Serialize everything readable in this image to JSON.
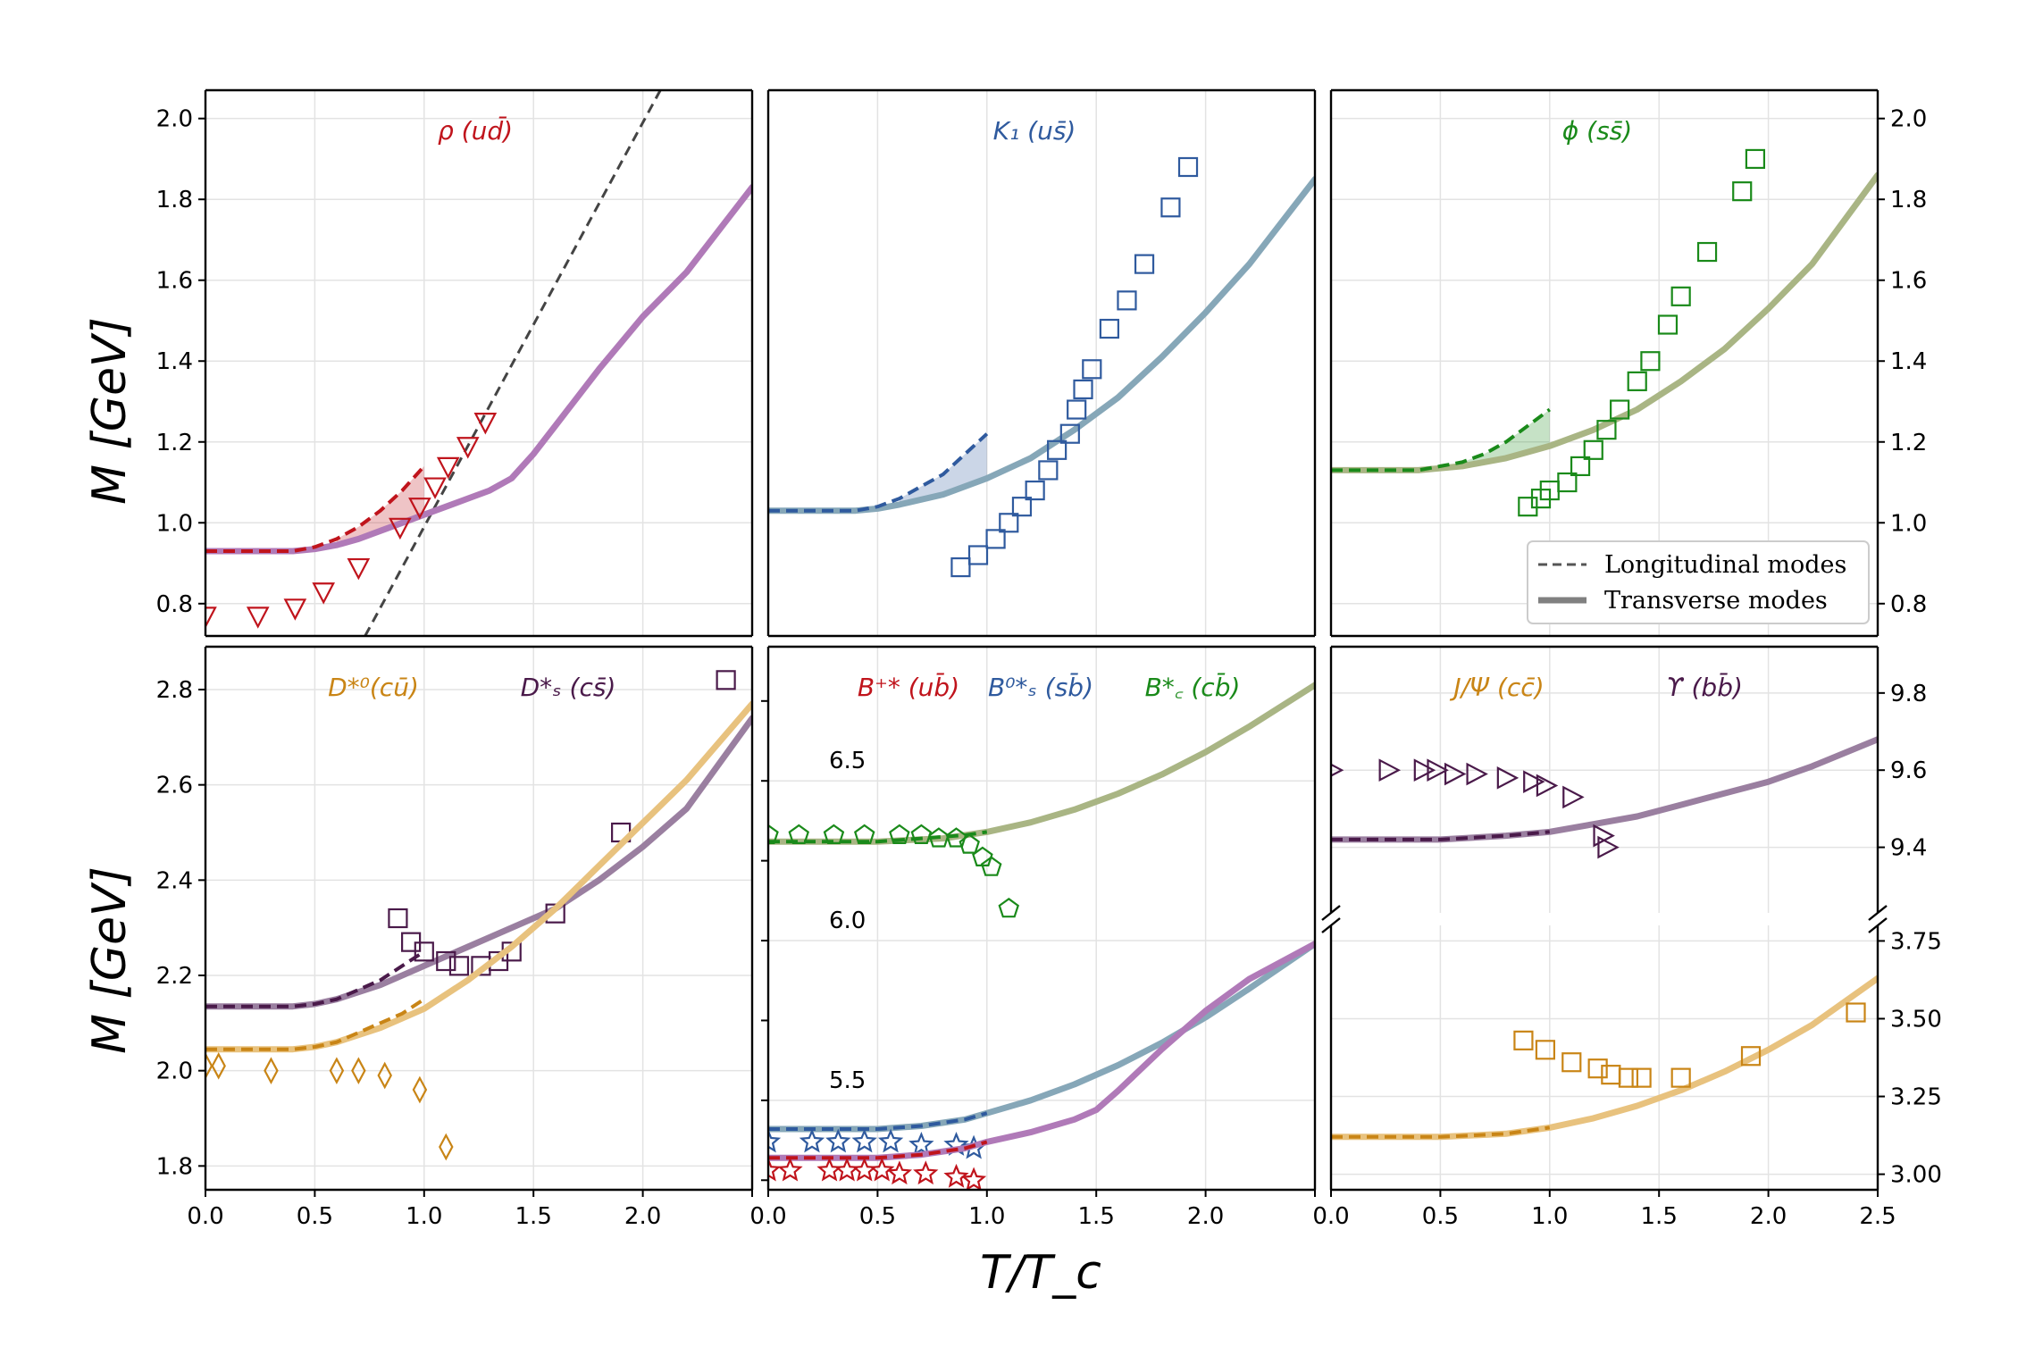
{
  "axes": {
    "xlabel": "T/T_c",
    "ylabel": "M  [GeV]",
    "x_ticks": [
      "0.0",
      "0.5",
      "1.0",
      "1.5",
      "2.0",
      "2.5"
    ]
  },
  "legend": {
    "placement": "lower-right of top-right panel",
    "entries": [
      {
        "label": "Longitudinal modes",
        "style": "dashed"
      },
      {
        "label": "Transverse modes",
        "style": "solid"
      }
    ]
  },
  "colors": {
    "red": "#c0141c",
    "purple": "#b07ab8",
    "blue": "#2f5a9e",
    "steel": "#86a7b8",
    "green": "#1a8a1a",
    "olive": "#a9b584",
    "orange": "#c98516",
    "tan": "#e8c27e",
    "darkpurple": "#4a1a4a",
    "mauve": "#9a7fa0"
  },
  "chart_data": [
    {
      "type": "line",
      "panel": "top-left",
      "title_parts": [
        "ρ (u",
        "d̄",
        ")"
      ],
      "title_color": "red",
      "xlim": [
        0,
        2.5
      ],
      "ylim": [
        0.72,
        2.07
      ],
      "y_ticks": [
        "0.8",
        "1.0",
        "1.2",
        "1.4",
        "1.6",
        "1.8",
        "2.0"
      ],
      "transverse": {
        "color": "purple",
        "x": [
          0,
          0.4,
          0.5,
          0.6,
          0.7,
          0.8,
          0.9,
          1.0,
          1.1,
          1.2,
          1.3,
          1.4,
          1.5,
          1.6,
          1.8,
          2.0,
          2.2,
          2.5
        ],
        "y": [
          0.93,
          0.93,
          0.935,
          0.945,
          0.96,
          0.98,
          1.0,
          1.02,
          1.04,
          1.06,
          1.08,
          1.11,
          1.17,
          1.24,
          1.38,
          1.51,
          1.62,
          1.83
        ]
      },
      "longitudinal": {
        "color": "red",
        "x": [
          0,
          0.4,
          0.5,
          0.6,
          0.7,
          0.8,
          0.9,
          1.0
        ],
        "y": [
          0.93,
          0.93,
          0.94,
          0.96,
          0.99,
          1.03,
          1.08,
          1.14
        ]
      },
      "line_dashed": {
        "color": "#444444",
        "x": [
          0.73,
          2.08
        ],
        "y": [
          0.72,
          2.07
        ]
      },
      "points": {
        "marker": "triangle-down",
        "color": "red",
        "x": [
          0,
          0.24,
          0.41,
          0.54,
          0.7,
          0.89,
          0.98,
          1.05,
          1.11,
          1.2,
          1.28
        ],
        "y": [
          0.77,
          0.77,
          0.79,
          0.83,
          0.89,
          0.99,
          1.04,
          1.09,
          1.14,
          1.19,
          1.25
        ]
      }
    },
    {
      "type": "line",
      "panel": "top-middle",
      "title_parts": [
        "K₁ (u",
        "s̄",
        ")"
      ],
      "title_color": "blue",
      "xlim": [
        0,
        2.5
      ],
      "ylim": [
        0.72,
        2.07
      ],
      "y_ticks": [],
      "transverse": {
        "color": "steel",
        "x": [
          0,
          0.4,
          0.5,
          0.6,
          0.8,
          1.0,
          1.2,
          1.4,
          1.6,
          1.8,
          2.0,
          2.2,
          2.5
        ],
        "y": [
          1.03,
          1.03,
          1.035,
          1.045,
          1.07,
          1.11,
          1.16,
          1.23,
          1.31,
          1.41,
          1.52,
          1.64,
          1.85
        ]
      },
      "longitudinal": {
        "color": "blue",
        "x": [
          0,
          0.4,
          0.5,
          0.6,
          0.7,
          0.8,
          0.9,
          1.0
        ],
        "y": [
          1.03,
          1.03,
          1.04,
          1.06,
          1.09,
          1.12,
          1.17,
          1.22
        ]
      },
      "points": {
        "marker": "square",
        "color": "blue",
        "x": [
          0.88,
          0.96,
          1.04,
          1.1,
          1.16,
          1.22,
          1.28,
          1.32,
          1.38,
          1.41,
          1.44,
          1.48,
          1.56,
          1.64,
          1.72,
          1.84,
          1.92
        ],
        "y": [
          0.89,
          0.92,
          0.96,
          1.0,
          1.04,
          1.08,
          1.13,
          1.18,
          1.22,
          1.28,
          1.33,
          1.38,
          1.48,
          1.55,
          1.64,
          1.78,
          1.88
        ]
      }
    },
    {
      "type": "line",
      "panel": "top-right",
      "title_parts": [
        "ϕ (s",
        "s̄",
        ")"
      ],
      "title_color": "green",
      "xlim": [
        0,
        2.5
      ],
      "ylim": [
        0.72,
        2.07
      ],
      "y_ticks": [
        "0.8",
        "1.0",
        "1.2",
        "1.4",
        "1.6",
        "1.8",
        "2.0"
      ],
      "transverse": {
        "color": "olive",
        "x": [
          0,
          0.4,
          0.5,
          0.6,
          0.8,
          1.0,
          1.2,
          1.4,
          1.6,
          1.8,
          2.0,
          2.2,
          2.5
        ],
        "y": [
          1.13,
          1.13,
          1.135,
          1.14,
          1.16,
          1.19,
          1.23,
          1.28,
          1.35,
          1.43,
          1.53,
          1.64,
          1.86
        ]
      },
      "longitudinal": {
        "color": "green",
        "x": [
          0,
          0.4,
          0.5,
          0.6,
          0.7,
          0.8,
          0.9,
          1.0
        ],
        "y": [
          1.13,
          1.13,
          1.14,
          1.15,
          1.17,
          1.2,
          1.24,
          1.28
        ]
      },
      "points": {
        "marker": "square",
        "color": "green",
        "x": [
          0.9,
          0.96,
          1.0,
          1.08,
          1.14,
          1.2,
          1.26,
          1.32,
          1.4,
          1.46,
          1.54,
          1.6,
          1.72,
          1.88,
          1.94
        ],
        "y": [
          1.04,
          1.06,
          1.08,
          1.1,
          1.14,
          1.18,
          1.23,
          1.28,
          1.35,
          1.4,
          1.49,
          1.56,
          1.67,
          1.82,
          1.9
        ]
      }
    },
    {
      "type": "line",
      "panel": "bottom-left",
      "titles": [
        {
          "parts": [
            "D*⁰(c",
            "ū",
            ")"
          ],
          "color": "orange"
        },
        {
          "parts": [
            "D*ₛ (c",
            "s̄",
            ")"
          ],
          "color": "darkpurple"
        }
      ],
      "xlim": [
        0,
        2.5
      ],
      "ylim": [
        1.75,
        2.89
      ],
      "y_ticks": [
        "1.8",
        "2.0",
        "2.2",
        "2.4",
        "2.6",
        "2.8"
      ],
      "series": [
        {
          "name": "D*ₛ",
          "transverse": {
            "color": "mauve",
            "x": [
              0,
              0.4,
              0.5,
              0.6,
              0.8,
              1.0,
              1.2,
              1.4,
              1.6,
              1.8,
              2.0,
              2.2,
              2.5
            ],
            "y": [
              2.135,
              2.135,
              2.14,
              2.15,
              2.18,
              2.22,
              2.26,
              2.3,
              2.34,
              2.4,
              2.47,
              2.55,
              2.74
            ]
          },
          "longitudinal": {
            "color": "darkpurple",
            "x": [
              0,
              0.4,
              0.5,
              0.6,
              0.7,
              0.8,
              0.9,
              1.0
            ],
            "y": [
              2.135,
              2.135,
              2.14,
              2.15,
              2.17,
              2.19,
              2.22,
              2.25
            ]
          },
          "points": {
            "marker": "square",
            "color": "darkpurple",
            "x": [
              0.88,
              0.94,
              1.0,
              1.1,
              1.16,
              1.26,
              1.34,
              1.4,
              1.6,
              1.9,
              2.38
            ],
            "y": [
              2.32,
              2.27,
              2.25,
              2.23,
              2.22,
              2.22,
              2.23,
              2.25,
              2.33,
              2.5,
              2.82
            ]
          }
        },
        {
          "name": "D*⁰",
          "transverse": {
            "color": "tan",
            "x": [
              0,
              0.4,
              0.5,
              0.6,
              0.8,
              1.0,
              1.2,
              1.4,
              1.6,
              1.8,
              2.0,
              2.2,
              2.5
            ],
            "y": [
              2.045,
              2.045,
              2.05,
              2.06,
              2.09,
              2.13,
              2.19,
              2.26,
              2.34,
              2.43,
              2.52,
              2.61,
              2.77
            ]
          },
          "longitudinal": {
            "color": "orange",
            "x": [
              0,
              0.4,
              0.5,
              0.6,
              0.7,
              0.8,
              0.9,
              1.0
            ],
            "y": [
              2.045,
              2.045,
              2.05,
              2.06,
              2.08,
              2.1,
              2.12,
              2.15
            ]
          },
          "points": {
            "marker": "diamond",
            "color": "orange",
            "x": [
              0,
              0.06,
              0.3,
              0.6,
              0.7,
              0.82,
              0.98,
              1.1
            ],
            "y": [
              2.01,
              2.01,
              2.0,
              2.0,
              2.0,
              1.99,
              1.96,
              1.84
            ]
          }
        }
      ]
    },
    {
      "type": "line",
      "panel": "bottom-middle",
      "titles": [
        {
          "parts": [
            "B⁺* (u",
            "b̄",
            ")"
          ],
          "color": "red"
        },
        {
          "parts": [
            "B⁰*ₛ (s",
            "b̄",
            ")"
          ],
          "color": "blue"
        },
        {
          "parts": [
            "B*꜀ (c",
            "b̄",
            ")"
          ],
          "color": "green"
        }
      ],
      "xlim": [
        0,
        2.5
      ],
      "ylim": [
        5.22,
        6.92
      ],
      "y_ticks": [
        "5.5",
        "6.0",
        "6.5"
      ],
      "y_minor_ticks": [
        5.25,
        5.75,
        6.25,
        6.75
      ],
      "series": [
        {
          "name": "B*꜀",
          "transverse": {
            "color": "olive",
            "x": [
              0,
              0.5,
              0.8,
              1.0,
              1.2,
              1.4,
              1.6,
              1.8,
              2.0,
              2.2,
              2.5
            ],
            "y": [
              6.31,
              6.31,
              6.32,
              6.34,
              6.37,
              6.41,
              6.46,
              6.52,
              6.59,
              6.67,
              6.8
            ]
          },
          "longitudinal": {
            "color": "green",
            "x": [
              0,
              0.5,
              0.7,
              0.9,
              1.0
            ],
            "y": [
              6.31,
              6.31,
              6.32,
              6.33,
              6.34
            ]
          },
          "points": {
            "marker": "pentagon",
            "color": "green",
            "x": [
              0,
              0.14,
              0.3,
              0.44,
              0.6,
              0.7,
              0.78,
              0.86,
              0.92,
              0.98,
              1.02,
              1.1
            ],
            "y": [
              6.33,
              6.33,
              6.33,
              6.33,
              6.33,
              6.33,
              6.32,
              6.32,
              6.3,
              6.26,
              6.23,
              6.1
            ]
          }
        },
        {
          "name": "B⁰*ₛ",
          "transverse": {
            "color": "steel",
            "x": [
              0,
              0.5,
              0.7,
              0.9,
              1.0,
              1.2,
              1.4,
              1.6,
              1.8,
              2.0,
              2.2,
              2.5
            ],
            "y": [
              5.41,
              5.41,
              5.42,
              5.44,
              5.46,
              5.5,
              5.55,
              5.61,
              5.68,
              5.76,
              5.85,
              5.99
            ]
          },
          "longitudinal": {
            "color": "blue",
            "x": [
              0,
              0.5,
              0.7,
              0.9,
              1.0
            ],
            "y": [
              5.41,
              5.41,
              5.42,
              5.44,
              5.46
            ]
          },
          "points": {
            "marker": "star",
            "color": "blue",
            "x": [
              0,
              0.2,
              0.32,
              0.44,
              0.56,
              0.7,
              0.86,
              0.94
            ],
            "y": [
              5.37,
              5.37,
              5.37,
              5.37,
              5.37,
              5.36,
              5.36,
              5.35
            ]
          }
        },
        {
          "name": "B⁺*",
          "transverse": {
            "color": "purple",
            "x": [
              0,
              0.5,
              0.7,
              0.9,
              1.0,
              1.2,
              1.4,
              1.5,
              1.6,
              1.8,
              2.0,
              2.2,
              2.5
            ],
            "y": [
              5.32,
              5.32,
              5.33,
              5.35,
              5.37,
              5.4,
              5.44,
              5.47,
              5.53,
              5.66,
              5.78,
              5.88,
              5.99
            ]
          },
          "longitudinal": {
            "color": "red",
            "x": [
              0,
              0.5,
              0.7,
              0.9,
              1.0
            ],
            "y": [
              5.32,
              5.32,
              5.33,
              5.35,
              5.37
            ]
          },
          "points": {
            "marker": "star",
            "color": "red",
            "x": [
              0,
              0.1,
              0.28,
              0.36,
              0.44,
              0.52,
              0.6,
              0.72,
              0.86,
              0.94
            ],
            "y": [
              5.28,
              5.28,
              5.28,
              5.28,
              5.28,
              5.28,
              5.27,
              5.27,
              5.26,
              5.25
            ]
          }
        }
      ]
    },
    {
      "type": "line",
      "panel": "bottom-right-upper",
      "titles": [
        {
          "parts": [
            "J/Ψ (c",
            "c̄",
            ")"
          ],
          "color": "orange"
        },
        {
          "parts": [
            "ϒ (b",
            "b̄",
            ")"
          ],
          "color": "darkpurple"
        }
      ],
      "xlim": [
        0,
        2.5
      ],
      "ylim": [
        9.23,
        9.92
      ],
      "y_ticks": [
        "9.4",
        "9.6",
        "9.8"
      ],
      "series": [
        {
          "name": "ϒ",
          "transverse": {
            "color": "mauve",
            "x": [
              0,
              0.5,
              0.8,
              1.0,
              1.2,
              1.4,
              1.6,
              1.8,
              2.0,
              2.2,
              2.5
            ],
            "y": [
              9.42,
              9.42,
              9.43,
              9.44,
              9.46,
              9.48,
              9.51,
              9.54,
              9.57,
              9.61,
              9.68
            ]
          },
          "longitudinal": {
            "color": "darkpurple",
            "x": [
              0,
              0.5,
              0.8,
              1.0
            ],
            "y": [
              9.42,
              9.42,
              9.43,
              9.44
            ]
          },
          "points": {
            "marker": "triangle-right",
            "color": "darkpurple",
            "x": [
              0,
              0.26,
              0.42,
              0.48,
              0.56,
              0.66,
              0.8,
              0.92,
              0.98,
              1.1,
              1.24,
              1.26
            ],
            "y": [
              9.6,
              9.6,
              9.6,
              9.6,
              9.59,
              9.59,
              9.58,
              9.57,
              9.56,
              9.53,
              9.43,
              9.4
            ]
          }
        }
      ]
    },
    {
      "type": "line",
      "panel": "bottom-right-lower",
      "xlim": [
        0,
        2.5
      ],
      "ylim": [
        2.95,
        3.8
      ],
      "y_ticks": [
        "3.00",
        "3.25",
        "3.50",
        "3.75"
      ],
      "series": [
        {
          "name": "J/Ψ",
          "transverse": {
            "color": "tan",
            "x": [
              0,
              0.5,
              0.8,
              1.0,
              1.2,
              1.4,
              1.6,
              1.8,
              2.0,
              2.2,
              2.5
            ],
            "y": [
              3.12,
              3.12,
              3.13,
              3.15,
              3.18,
              3.22,
              3.27,
              3.33,
              3.4,
              3.48,
              3.63
            ]
          },
          "longitudinal": {
            "color": "orange",
            "x": [
              0,
              0.5,
              0.8,
              1.0
            ],
            "y": [
              3.12,
              3.12,
              3.13,
              3.15
            ]
          },
          "points": {
            "marker": "square",
            "color": "orange",
            "x": [
              0.88,
              0.98,
              1.1,
              1.22,
              1.28,
              1.36,
              1.42,
              1.6,
              1.92,
              2.4
            ],
            "y": [
              3.43,
              3.4,
              3.36,
              3.34,
              3.32,
              3.31,
              3.31,
              3.31,
              3.38,
              3.52
            ]
          }
        }
      ]
    }
  ]
}
